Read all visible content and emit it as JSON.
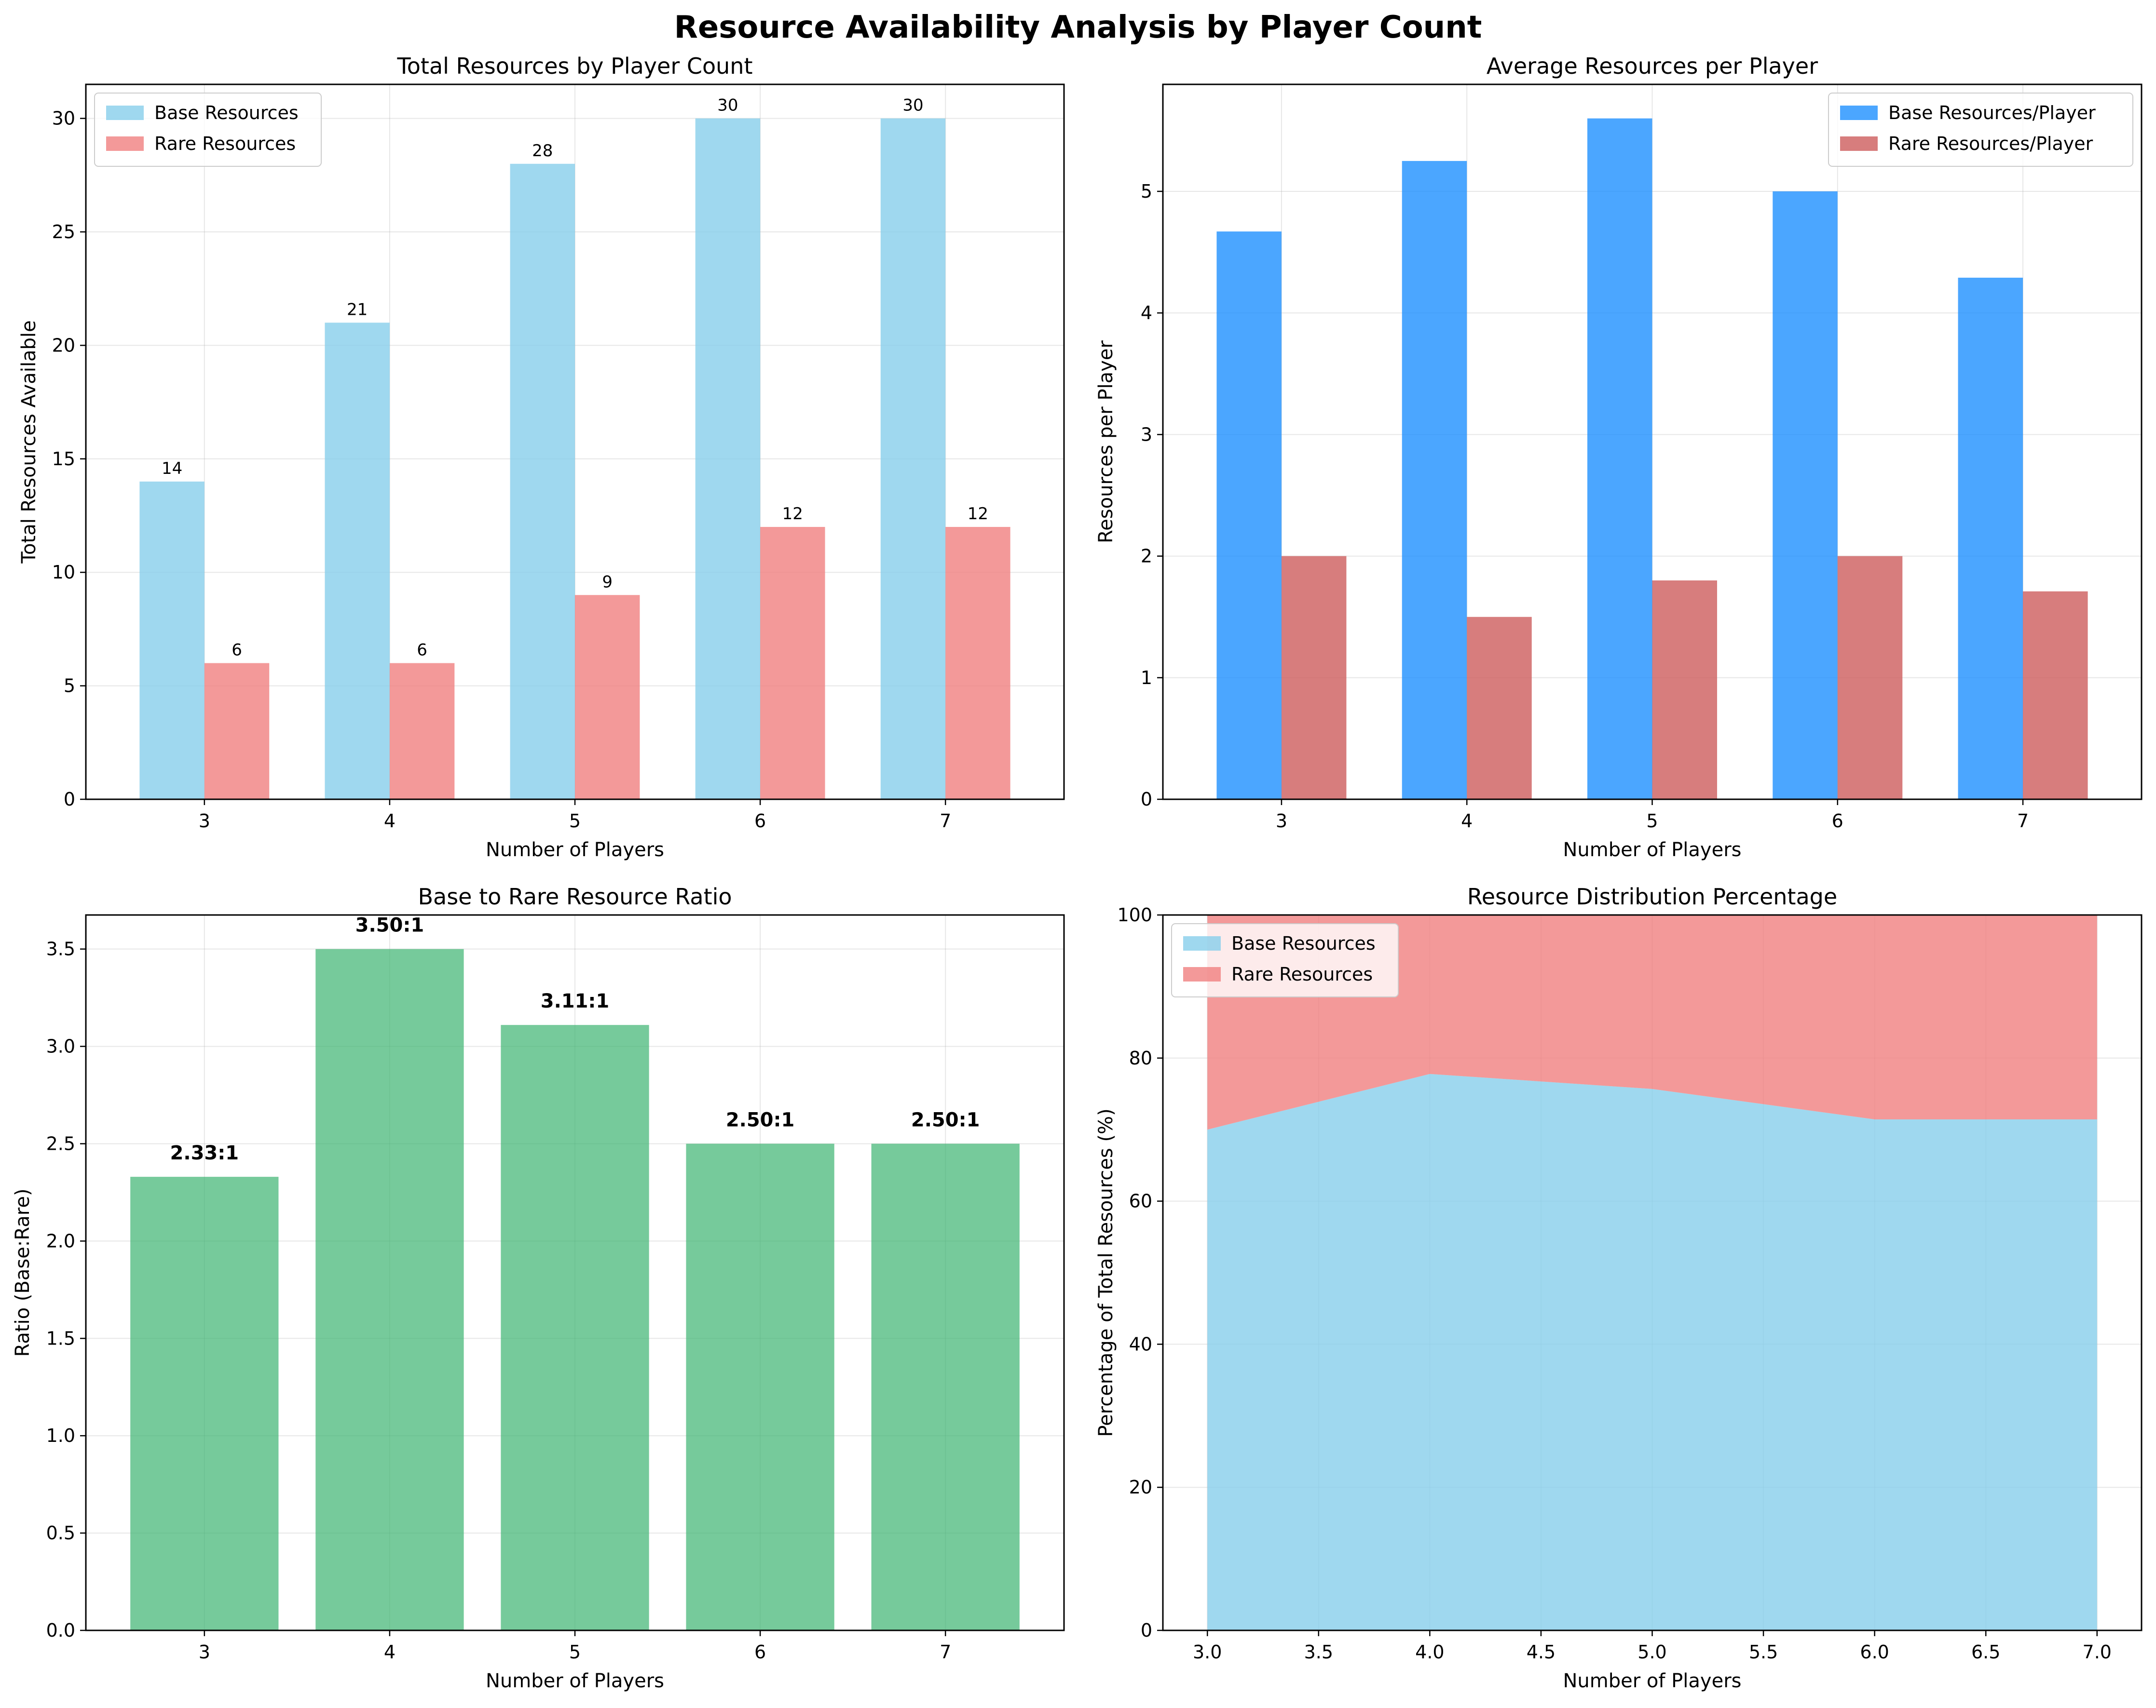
{
  "figure": {
    "title": "Resource Availability Analysis by Player Count"
  },
  "chart_data": [
    {
      "id": "total",
      "type": "bar",
      "title": "Total Resources by Player Count",
      "xlabel": "Number of Players",
      "ylabel": "Total Resources Available",
      "categories": [
        "3",
        "4",
        "5",
        "6",
        "7"
      ],
      "ylim": [
        0,
        31.5
      ],
      "yticks": [
        0,
        5,
        10,
        15,
        20,
        25,
        30
      ],
      "grid": true,
      "legend": "upper-left",
      "series": [
        {
          "name": "Base Resources",
          "values": [
            14,
            21,
            28,
            30,
            30
          ],
          "color": "#87ceeb",
          "labels": [
            "14",
            "21",
            "28",
            "30",
            "30"
          ]
        },
        {
          "name": "Rare Resources",
          "values": [
            6,
            6,
            9,
            12,
            12
          ],
          "color": "#f08080",
          "labels": [
            "6",
            "6",
            "9",
            "12",
            "12"
          ]
        }
      ]
    },
    {
      "id": "average",
      "type": "bar",
      "title": "Average Resources per Player",
      "xlabel": "Number of Players",
      "ylabel": "Resources per Player",
      "categories": [
        "3",
        "4",
        "5",
        "6",
        "7"
      ],
      "ylim": [
        0,
        5.88
      ],
      "yticks": [
        0,
        1,
        2,
        3,
        4,
        5
      ],
      "grid": true,
      "legend": "upper-right",
      "series": [
        {
          "name": "Base Resources/Player",
          "values": [
            4.67,
            5.25,
            5.6,
            5.0,
            4.29
          ],
          "color": "#1e90ff"
        },
        {
          "name": "Rare Resources/Player",
          "values": [
            2.0,
            1.5,
            1.8,
            2.0,
            1.71
          ],
          "color": "#cd5c5c"
        }
      ]
    },
    {
      "id": "ratio",
      "type": "bar",
      "title": "Base to Rare Resource Ratio",
      "xlabel": "Number of Players",
      "ylabel": "Ratio (Base:Rare)",
      "categories": [
        "3",
        "4",
        "5",
        "6",
        "7"
      ],
      "ylim": [
        0,
        3.675
      ],
      "yticks": [
        0.0,
        0.5,
        1.0,
        1.5,
        2.0,
        2.5,
        3.0,
        3.5
      ],
      "grid": true,
      "series": [
        {
          "name": "",
          "values": [
            2.33,
            3.5,
            3.11,
            2.5,
            2.5
          ],
          "color": "#3cb371",
          "labels": [
            "2.33:1",
            "3.50:1",
            "3.11:1",
            "2.50:1",
            "2.50:1"
          ]
        }
      ]
    },
    {
      "id": "distribution",
      "type": "area",
      "title": "Resource Distribution Percentage",
      "xlabel": "Number of Players",
      "ylabel": "Percentage of Total Resources (%)",
      "x": [
        3,
        4,
        5,
        6,
        7
      ],
      "xlim": [
        2.8,
        7.2
      ],
      "xticks": [
        "3.0",
        "3.5",
        "4.0",
        "4.5",
        "5.0",
        "5.5",
        "6.0",
        "6.5",
        "7.0"
      ],
      "ylim": [
        0,
        100
      ],
      "yticks": [
        0,
        20,
        40,
        60,
        80,
        100
      ],
      "grid": true,
      "legend": "upper-left",
      "series": [
        {
          "name": "Base Resources",
          "values": [
            70.0,
            77.78,
            75.68,
            71.43,
            71.43
          ],
          "color": "#87ceeb"
        },
        {
          "name": "Rare Resources",
          "values": [
            30.0,
            22.22,
            24.32,
            28.57,
            28.57
          ],
          "color": "#f08080"
        }
      ]
    }
  ]
}
